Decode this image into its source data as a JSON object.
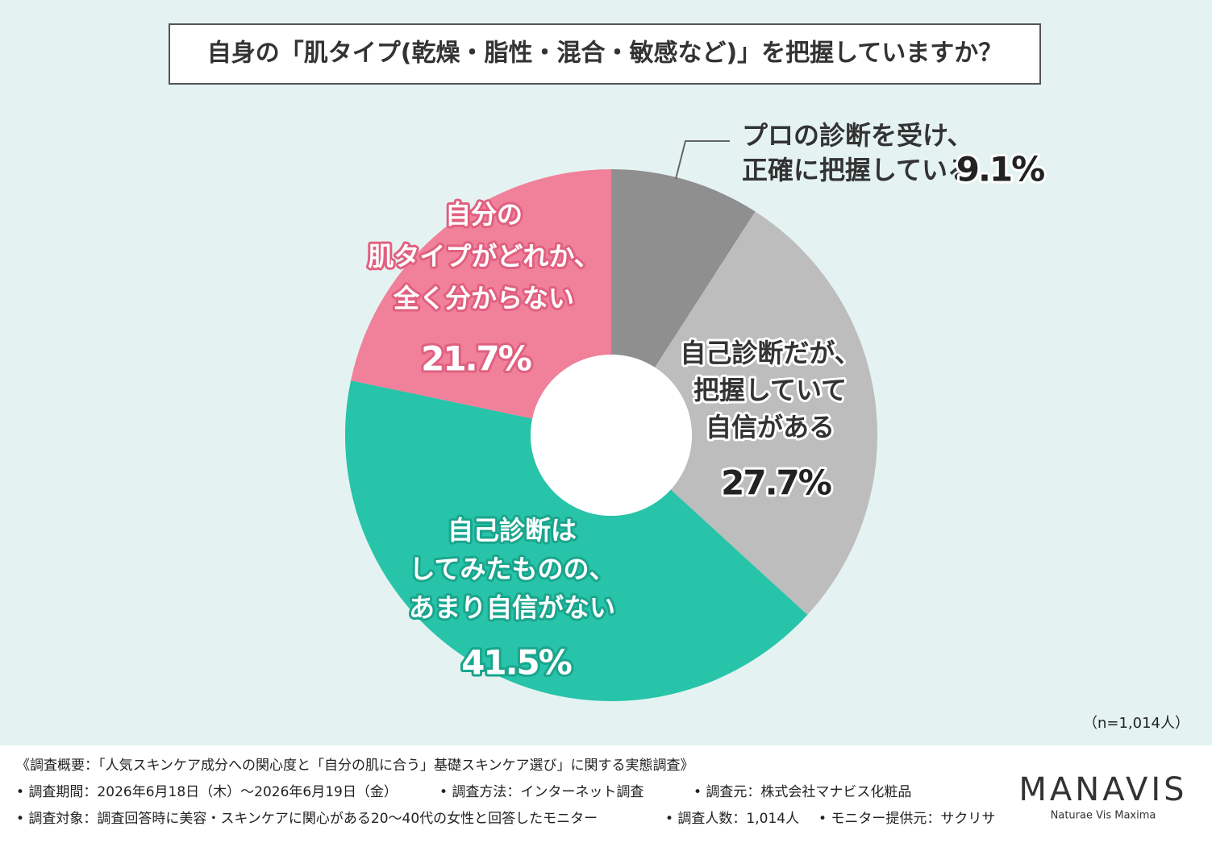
{
  "chart_data": {
    "type": "donut",
    "title": "自身の「肌タイプ(乾燥・脂性・混合・敏感など)」を把握していますか？",
    "categories": [
      [
        "プロの診断を受け、",
        "正確に把握している"
      ],
      [
        "自己診断だが、",
        "把握していて",
        "自信がある"
      ],
      [
        "自己診断は",
        "してみたものの、",
        "あまり自信がない"
      ],
      [
        "自分の",
        "肌タイプがどれか、",
        "全く分からない"
      ]
    ],
    "values": [
      9.1,
      27.7,
      41.5,
      21.7
    ],
    "value_labels": [
      "9.1%",
      "27.7%",
      "41.5%",
      "21.7%"
    ],
    "colors": [
      "#8f8f8f",
      "#bdbdbd",
      "#27c4a9",
      "#f1809a"
    ],
    "note": "（n=1,014人）"
  },
  "footer": {
    "lines": [
      [
        "《調査概要：「人気スキンケア成分への関心度と「自分の肌に合う」基礎スキンケア選び」に関する実態調査》"
      ],
      [
        "• 調査期間：2026年6月18日（木）～2026年6月19日（金）",
        "• 調査方法：インターネット調査",
        "• 調査元：株式会社マナビス化粧品"
      ],
      [
        "• 調査対象：調査回答時に美容・スキンケアに関心がある20～40代の女性と回答したモニター",
        "• 調査人数：1,014人",
        "• モニター提供元：サクリサ"
      ]
    ],
    "logo": "MANAVIS",
    "tagline": "Naturae Vis Maxima"
  }
}
